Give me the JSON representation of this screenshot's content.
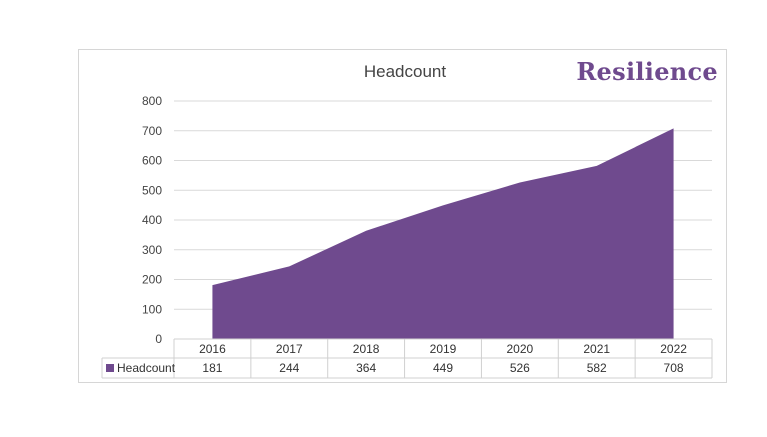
{
  "brand": {
    "logo_text": "Resilience",
    "accent_color": "#6f4a8e"
  },
  "chart_data": {
    "type": "area",
    "title": "Headcount",
    "categories": [
      "2016",
      "2017",
      "2018",
      "2019",
      "2020",
      "2021",
      "2022"
    ],
    "series": [
      {
        "name": "Headcount",
        "values": [
          181,
          244,
          364,
          449,
          526,
          582,
          708
        ],
        "color": "#6f4a8e"
      }
    ],
    "ylim": [
      0,
      800
    ],
    "yticks": [
      0,
      100,
      200,
      300,
      400,
      500,
      600,
      700,
      800
    ],
    "grid": true,
    "data_table": true
  }
}
